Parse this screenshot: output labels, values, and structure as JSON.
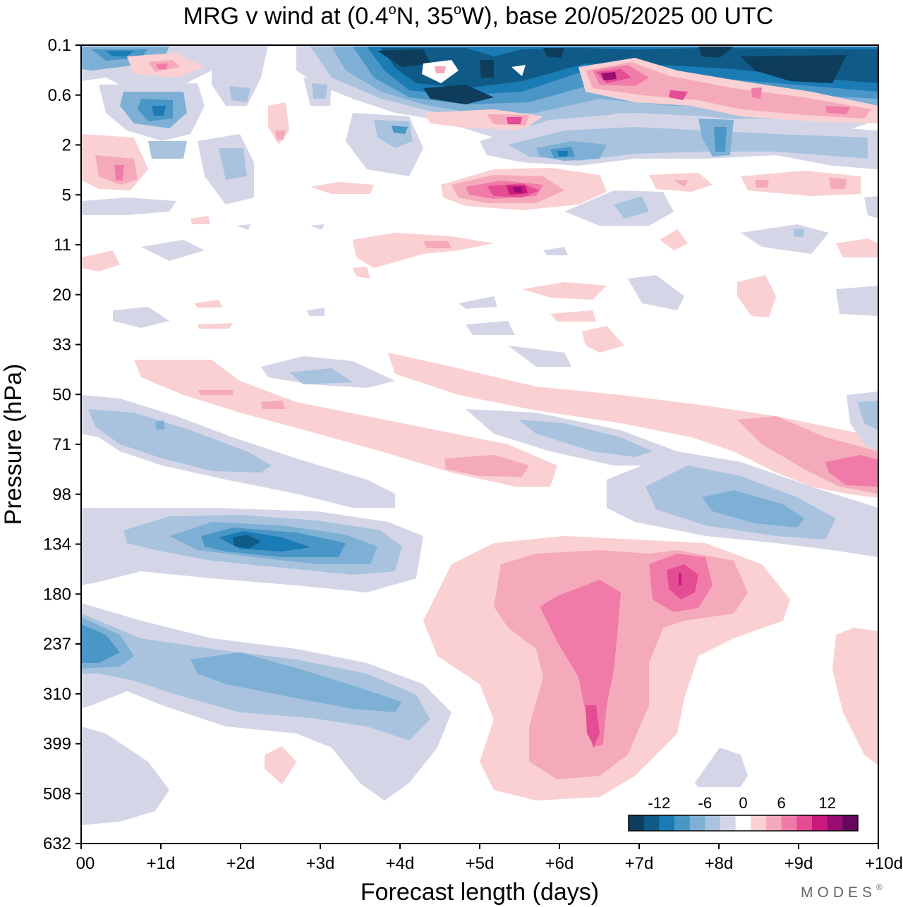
{
  "chart_data": {
    "type": "heatmap",
    "title": "MRG v wind at (0.4°N, 35°W),  base 20/05/2025  00 UTC",
    "title_parts": {
      "prefix": "MRG v wind at (0.4",
      "deg1": "o",
      "mid": "N, 35",
      "deg2": "o",
      "suffix": "W),  base 20/05/2025  00 UTC"
    },
    "xlabel": "Forecast length (days)",
    "ylabel": "Pressure (hPa)",
    "x_ticks": [
      "00",
      "+1d",
      "+2d",
      "+3d",
      "+4d",
      "+5d",
      "+6d",
      "+7d",
      "+8d",
      "+9d",
      "+10d"
    ],
    "xlim": [
      0,
      10
    ],
    "y_ticks": [
      "0.1",
      "0.6",
      "2",
      "5",
      "11",
      "20",
      "33",
      "50",
      "71",
      "98",
      "134",
      "180",
      "237",
      "310",
      "399",
      "508",
      "632"
    ],
    "y_scale": "log-pressure (top = 0.1 hPa, bottom = 632 hPa)",
    "colorbar": {
      "labels": [
        "-12",
        "-6",
        "0",
        "6",
        "12"
      ],
      "label_values": [
        -12,
        -6,
        0,
        6,
        12
      ],
      "levels": [
        -16,
        -14,
        -12,
        -10,
        -8,
        -6,
        -4,
        -2,
        2,
        4,
        6,
        8,
        10,
        12,
        14,
        16
      ],
      "colors": [
        "#0d3d5a",
        "#0f5a87",
        "#1a7bb5",
        "#4a96c6",
        "#7eb0d6",
        "#a9c3de",
        "#d4d6e8",
        "#ffffff",
        "#fad0d2",
        "#f5aabb",
        "#f07ba8",
        "#e44d93",
        "#c9197c",
        "#9a0e72",
        "#63095e"
      ]
    },
    "features": [
      {
        "name": "negative",
        "day": 2.0,
        "pressure": 134,
        "value": -10
      },
      {
        "name": "negative",
        "day": 1.5,
        "pressure": 280,
        "value": -7
      },
      {
        "name": "negative",
        "day": 1.5,
        "pressure": 71,
        "value": -5
      },
      {
        "name": "negative",
        "day": 8.5,
        "pressure": 110,
        "value": -6
      },
      {
        "name": "negative",
        "day": 7.0,
        "pressure": 75,
        "value": -5
      },
      {
        "name": "negative",
        "day": 4.5,
        "pressure": 0.2,
        "value": -16
      },
      {
        "name": "negative",
        "day": 9.0,
        "pressure": 0.2,
        "value": -16
      },
      {
        "name": "negative",
        "day": 6.0,
        "pressure": 3,
        "value": -9
      },
      {
        "name": "positive",
        "day": 6.5,
        "pressure": 250,
        "value": 9
      },
      {
        "name": "positive",
        "day": 7.5,
        "pressure": 180,
        "value": 9
      },
      {
        "name": "positive",
        "day": 5.5,
        "pressure": 5,
        "value": 11
      },
      {
        "name": "positive",
        "day": 6.5,
        "pressure": 0.4,
        "value": 13
      },
      {
        "name": "positive",
        "day": 9.8,
        "pressure": 88,
        "value": 8
      },
      {
        "name": "positive",
        "day": 5.0,
        "pressure": 88,
        "value": 5
      },
      {
        "name": "positive",
        "day": 0.5,
        "pressure": 3.5,
        "value": 5
      }
    ]
  },
  "branding": {
    "logo_text": "MODES",
    "logo_mark": "®"
  }
}
